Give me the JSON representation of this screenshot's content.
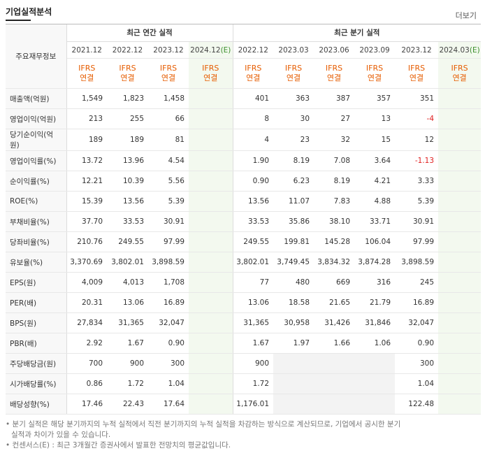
{
  "header": {
    "title": "기업실적분석",
    "more": "더보기"
  },
  "table": {
    "corner": "주요재무정보",
    "groups": [
      {
        "label": "최근 연간 실적",
        "span": 4
      },
      {
        "label": "최근 분기 실적",
        "span": 6
      }
    ],
    "periods": [
      {
        "date": "2021.12"
      },
      {
        "date": "2022.12"
      },
      {
        "date": "2023.12"
      },
      {
        "date": "2024.12",
        "mark": "(E)"
      },
      {
        "date": "2022.12"
      },
      {
        "date": "2023.03"
      },
      {
        "date": "2023.06"
      },
      {
        "date": "2023.09"
      },
      {
        "date": "2023.12"
      },
      {
        "date": "2024.03",
        "mark": "(E)"
      }
    ],
    "standard": [
      "IFRS",
      "연결"
    ],
    "sections": [
      [
        {
          "label": "매출액(억원)",
          "cells": [
            "1,549",
            "1,823",
            "1,458",
            null,
            "401",
            "363",
            "387",
            "357",
            "351",
            null
          ]
        },
        {
          "label": "영업이익(억원)",
          "cells": [
            "213",
            "255",
            "66",
            null,
            "8",
            "30",
            "27",
            "13",
            "-4",
            null
          ]
        },
        {
          "label": "당기순이익(억원)",
          "cells": [
            "189",
            "189",
            "81",
            null,
            "4",
            "23",
            "32",
            "15",
            "12",
            null
          ]
        }
      ],
      [
        {
          "label": "영업이익률(%)",
          "cells": [
            "13.72",
            "13.96",
            "4.54",
            null,
            "1.90",
            "8.19",
            "7.08",
            "3.64",
            "-1.13",
            null
          ]
        },
        {
          "label": "순이익률(%)",
          "cells": [
            "12.21",
            "10.39",
            "5.56",
            null,
            "0.90",
            "6.23",
            "8.19",
            "4.21",
            "3.33",
            null
          ]
        },
        {
          "label": "ROE(%)",
          "cells": [
            "15.39",
            "13.56",
            "5.39",
            null,
            "13.56",
            "11.07",
            "7.83",
            "4.88",
            "5.39",
            null
          ]
        }
      ],
      [
        {
          "label": "부채비율(%)",
          "cells": [
            "37.70",
            "33.53",
            "30.91",
            null,
            "33.53",
            "35.86",
            "38.10",
            "33.71",
            "30.91",
            null
          ]
        },
        {
          "label": "당좌비율(%)",
          "cells": [
            "210.76",
            "249.55",
            "97.99",
            null,
            "249.55",
            "199.81",
            "145.28",
            "106.04",
            "97.99",
            null
          ]
        },
        {
          "label": "유보율(%)",
          "cells": [
            "3,370.69",
            "3,802.01",
            "3,898.59",
            null,
            "3,802.01",
            "3,749.45",
            "3,834.32",
            "3,874.28",
            "3,898.59",
            null
          ]
        }
      ],
      [
        {
          "label": "EPS(원)",
          "cells": [
            "4,009",
            "4,013",
            "1,708",
            null,
            "77",
            "480",
            "669",
            "316",
            "245",
            null
          ]
        },
        {
          "label": "PER(배)",
          "cells": [
            "20.31",
            "13.06",
            "16.89",
            null,
            "13.06",
            "18.58",
            "21.65",
            "21.79",
            "16.89",
            null
          ]
        },
        {
          "label": "BPS(원)",
          "cells": [
            "27,834",
            "31,365",
            "32,047",
            null,
            "31,365",
            "30,958",
            "31,426",
            "31,846",
            "32,047",
            null
          ]
        },
        {
          "label": "PBR(배)",
          "cells": [
            "2.92",
            "1.67",
            "0.90",
            null,
            "1.67",
            "1.97",
            "1.66",
            "1.06",
            "0.90",
            null
          ]
        }
      ],
      [
        {
          "label": "주당배당금(원)",
          "cells": [
            "700",
            "900",
            "300",
            null,
            "900",
            null,
            null,
            null,
            "300",
            null
          ]
        },
        {
          "label": "시가배당률(%)",
          "cells": [
            "0.86",
            "1.72",
            "1.04",
            null,
            "1.72",
            null,
            null,
            null,
            "1.04",
            null
          ]
        },
        {
          "label": "배당성향(%)",
          "cells": [
            "17.46",
            "22.43",
            "17.64",
            null,
            "1,176.01",
            null,
            null,
            null,
            "122.48",
            null
          ]
        }
      ]
    ]
  },
  "notes": [
    "분기 실적은 해당 분기까지의 누적 실적에서 직전 분기까지의 누적 실적을 차감하는 방식으로 계산되므로, 기업에서 공시한 분기 실적과 차이가 있을 수 있습니다.",
    "컨센서스(E) : 최근 3개월간 증권사에서 발표한 전망치의 평균값입니다."
  ]
}
